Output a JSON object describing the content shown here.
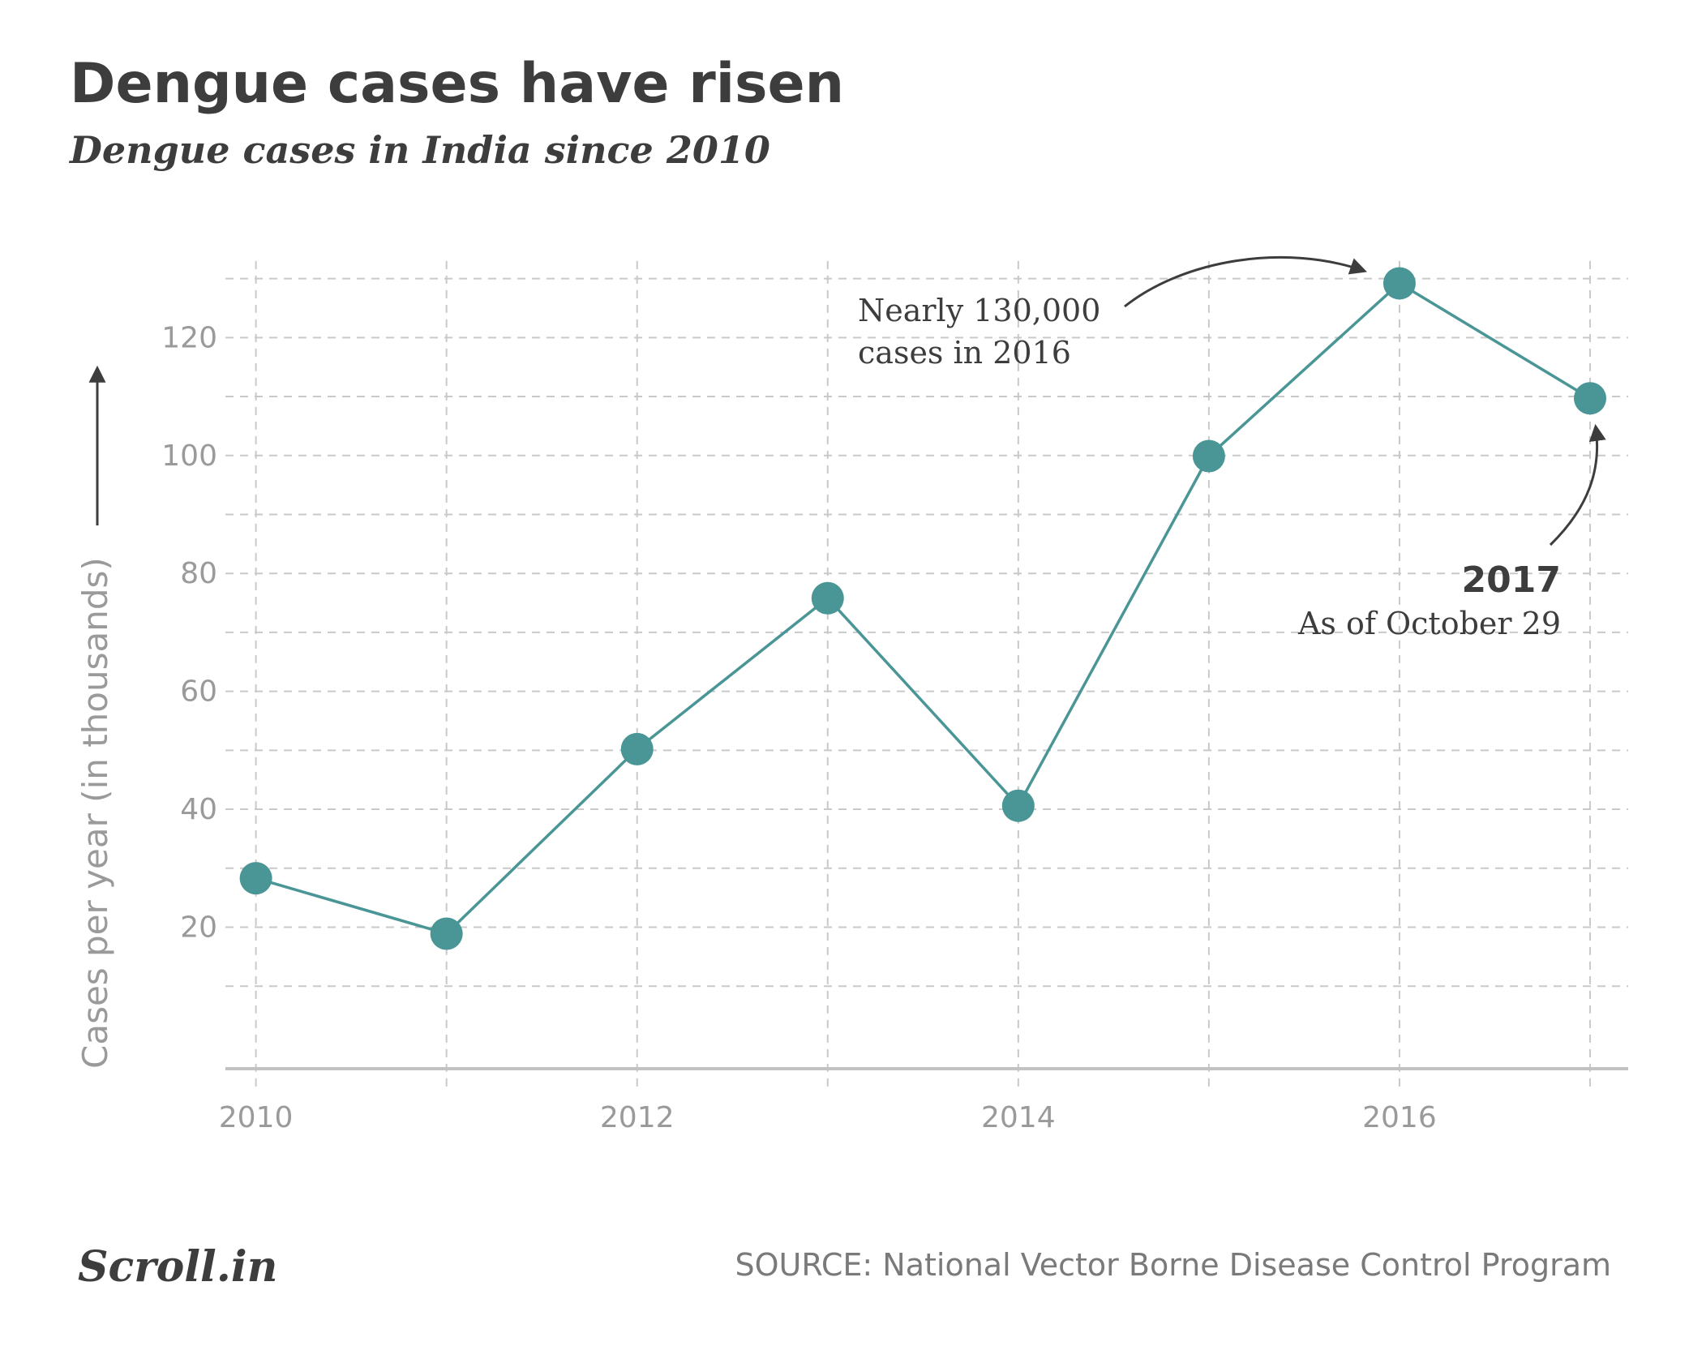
{
  "header": {
    "title": "Dengue cases have risen",
    "subtitle": "Dengue cases in India since 2010"
  },
  "chart_data": {
    "type": "line",
    "title": "Dengue cases have risen",
    "subtitle": "Dengue cases in India since 2010",
    "xlabel": "",
    "ylabel": "Cases per year (in thousands)",
    "x": [
      2010,
      2011,
      2012,
      2013,
      2014,
      2015,
      2016,
      2017
    ],
    "values": [
      28.3,
      18.9,
      50.2,
      75.8,
      40.6,
      99.9,
      129.2,
      109.7
    ],
    "x_ticks": [
      "2010",
      "2012",
      "2014",
      "2016"
    ],
    "y_ticks": [
      "20",
      "40",
      "60",
      "80",
      "100",
      "120"
    ],
    "xlim": [
      2009.84,
      2017.2
    ],
    "ylim": [
      -4,
      136
    ],
    "grid": true,
    "legend": "none",
    "series_color": "#4a9595",
    "annotations": [
      {
        "lines": [
          "Nearly 130,000",
          "cases in 2016"
        ],
        "points_to": 2016
      },
      {
        "bold": "2017",
        "text": "As of October 29",
        "points_to": 2017
      }
    ]
  },
  "footer": {
    "logo": "Scroll.in",
    "source": "SOURCE: National Vector Borne Disease Control Program"
  }
}
